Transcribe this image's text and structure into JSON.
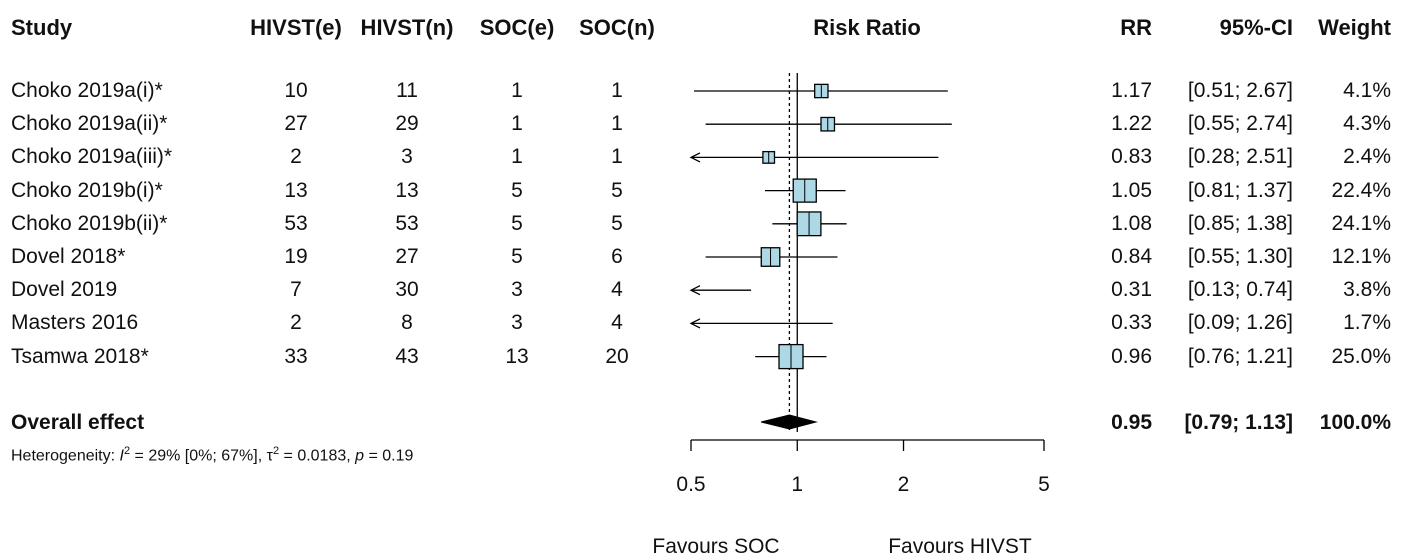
{
  "header": {
    "study": "Study",
    "hivst_e": "HIVST(e)",
    "hivst_n": "HIVST(n)",
    "soc_e": "SOC(e)",
    "soc_n": "SOC(n)",
    "risk_ratio": "Risk Ratio",
    "rr": "RR",
    "ci": "95%-CI",
    "weight": "Weight"
  },
  "overall": {
    "label": "Overall effect",
    "rr": "0.95",
    "ci": "[0.79; 1.13]",
    "weight": "100.0%"
  },
  "heterogeneity": {
    "prefix": "Heterogeneity: ",
    "i2_symbol": "I",
    "i2_sup": "2",
    "i2_text": " = 29% [0%; 67%], ",
    "tau_symbol": "τ",
    "tau_sup": "2",
    "tau_text": " = 0.0183, ",
    "p_symbol": "p",
    "p_text": " = 0.19"
  },
  "favours": {
    "left": "Favours SOC",
    "right": "Favours HIVST"
  },
  "chart_data": {
    "type": "forest",
    "scale": "log",
    "xlim": [
      0.5,
      5
    ],
    "ticks": [
      0.5,
      1,
      2,
      5
    ],
    "tick_labels": [
      "0.5",
      "1",
      "2",
      "5"
    ],
    "reference_line": 1,
    "pooled_estimate_line": 0.95,
    "studies": [
      {
        "study": "Choko 2019a(i)*",
        "hivst_e": "10",
        "hivst_n": "11",
        "soc_e": "1",
        "soc_n": "1",
        "rr": 1.17,
        "lower": 0.51,
        "upper": 2.67,
        "rr_text": "1.17",
        "ci_text": "[0.51; 2.67]",
        "weight": 4.1,
        "weight_text": "4.1%"
      },
      {
        "study": "Choko 2019a(ii)*",
        "hivst_e": "27",
        "hivst_n": "29",
        "soc_e": "1",
        "soc_n": "1",
        "rr": 1.22,
        "lower": 0.55,
        "upper": 2.74,
        "rr_text": "1.22",
        "ci_text": "[0.55; 2.74]",
        "weight": 4.3,
        "weight_text": "4.3%"
      },
      {
        "study": "Choko 2019a(iii)*",
        "hivst_e": "2",
        "hivst_n": "3",
        "soc_e": "1",
        "soc_n": "1",
        "rr": 0.83,
        "lower": 0.28,
        "upper": 2.51,
        "rr_text": "0.83",
        "ci_text": "[0.28; 2.51]",
        "weight": 2.4,
        "weight_text": "2.4%"
      },
      {
        "study": "Choko 2019b(i)*",
        "hivst_e": "13",
        "hivst_n": "13",
        "soc_e": "5",
        "soc_n": "5",
        "rr": 1.05,
        "lower": 0.81,
        "upper": 1.37,
        "rr_text": "1.05",
        "ci_text": "[0.81; 1.37]",
        "weight": 22.4,
        "weight_text": "22.4%"
      },
      {
        "study": "Choko 2019b(ii)*",
        "hivst_e": "53",
        "hivst_n": "53",
        "soc_e": "5",
        "soc_n": "5",
        "rr": 1.08,
        "lower": 0.85,
        "upper": 1.38,
        "rr_text": "1.08",
        "ci_text": "[0.85; 1.38]",
        "weight": 24.1,
        "weight_text": "24.1%"
      },
      {
        "study": "Dovel 2018*",
        "hivst_e": "19",
        "hivst_n": "27",
        "soc_e": "5",
        "soc_n": "6",
        "rr": 0.84,
        "lower": 0.55,
        "upper": 1.3,
        "rr_text": "0.84",
        "ci_text": "[0.55; 1.30]",
        "weight": 12.1,
        "weight_text": "12.1%"
      },
      {
        "study": "Dovel 2019",
        "hivst_e": "7",
        "hivst_n": "30",
        "soc_e": "3",
        "soc_n": "4",
        "rr": 0.31,
        "lower": 0.13,
        "upper": 0.74,
        "rr_text": "0.31",
        "ci_text": "[0.13; 0.74]",
        "weight": 3.8,
        "weight_text": "3.8%"
      },
      {
        "study": "Masters 2016",
        "hivst_e": "2",
        "hivst_n": "8",
        "soc_e": "3",
        "soc_n": "4",
        "rr": 0.33,
        "lower": 0.09,
        "upper": 1.26,
        "rr_text": "0.33",
        "ci_text": "[0.09; 1.26]",
        "weight": 1.7,
        "weight_text": "1.7%"
      },
      {
        "study": "Tsamwa 2018*",
        "hivst_e": "33",
        "hivst_n": "43",
        "soc_e": "13",
        "soc_n": "20",
        "rr": 0.96,
        "lower": 0.76,
        "upper": 1.21,
        "rr_text": "0.96",
        "ci_text": "[0.76; 1.21]",
        "weight": 25.0,
        "weight_text": "25.0%"
      }
    ],
    "pooled": {
      "rr": 0.95,
      "lower": 0.79,
      "upper": 1.13
    },
    "colors": {
      "box_fill": "#add8e6",
      "line": "#000000",
      "diamond": "#000000"
    }
  }
}
